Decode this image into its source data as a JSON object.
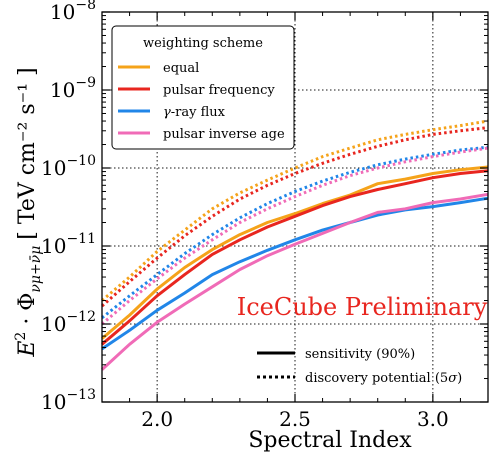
{
  "chart_data": {
    "type": "line",
    "xlabel": "Spectral Index",
    "ylabel_parts": {
      "prefix": "E",
      "sup": "2",
      "middle": " · Φ",
      "sub": "νμ+ν̄μ",
      "units": "[ TeV cm⁻² s⁻¹ ]"
    },
    "xlim": [
      1.8,
      3.2
    ],
    "ylim": [
      1e-13,
      1e-08
    ],
    "yscale": "log",
    "grid": true,
    "x_ticks": [
      2.0,
      2.5,
      3.0
    ],
    "x_tick_labels": [
      "2.0",
      "2.5",
      "3.0"
    ],
    "y_ticks": [
      1e-13,
      1e-12,
      1e-11,
      1e-10,
      1e-09,
      1e-08
    ],
    "y_tick_labels": [
      {
        "base": "10",
        "exp": "−13"
      },
      {
        "base": "10",
        "exp": "−12"
      },
      {
        "base": "10",
        "exp": "−11"
      },
      {
        "base": "10",
        "exp": "−10"
      },
      {
        "base": "10",
        "exp": "−9"
      },
      {
        "base": "10",
        "exp": "−8"
      }
    ],
    "x": [
      1.8,
      1.9,
      2.0,
      2.1,
      2.2,
      2.3,
      2.4,
      2.5,
      2.6,
      2.7,
      2.8,
      2.9,
      3.0,
      3.1,
      3.2
    ],
    "legend_title": "weighting scheme",
    "legend_placement": "top-left",
    "series": [
      {
        "name": "equal",
        "color": "#f5a31a",
        "style": "solid",
        "values": [
          6.5e-13,
          1.3e-12,
          2.8e-12,
          5.3e-12,
          9e-12,
          1.4e-11,
          2e-11,
          2.6e-11,
          3.5e-11,
          4.5e-11,
          6.3e-11,
          7.2e-11,
          8.5e-11,
          9.5e-11,
          1.03e-10
        ]
      },
      {
        "name": "pulsar frequency",
        "color": "#e8261f",
        "style": "solid",
        "values": [
          5.5e-13,
          1.1e-12,
          2.3e-12,
          4.3e-12,
          7.8e-12,
          1.2e-11,
          1.75e-11,
          2.4e-11,
          3.3e-11,
          4.3e-11,
          5.3e-11,
          6.3e-11,
          7.5e-11,
          8.5e-11,
          9.2e-11
        ]
      },
      {
        "name": "γ-ray flux",
        "color": "#2186e8",
        "style": "solid",
        "values": [
          4.8e-13,
          8.3e-13,
          1.5e-12,
          2.5e-12,
          4.3e-12,
          6.3e-12,
          8.8e-12,
          1.2e-11,
          1.6e-11,
          2e-11,
          2.5e-11,
          2.9e-11,
          3.2e-11,
          3.6e-11,
          4.1e-11
        ]
      },
      {
        "name": "pulsar inverse age",
        "color": "#f06bb7",
        "style": "solid",
        "values": [
          2.6e-13,
          5.5e-13,
          1.05e-12,
          1.8e-12,
          3e-12,
          5e-12,
          7.5e-12,
          1.05e-11,
          1.45e-11,
          2e-11,
          2.7e-11,
          3e-11,
          3.6e-11,
          4e-11,
          4.6e-11
        ]
      },
      {
        "name": "equal",
        "color": "#f5a31a",
        "style": "dotted",
        "values": [
          2e-12,
          4e-12,
          8.5e-12,
          1.6e-11,
          3e-11,
          4.8e-11,
          7e-11,
          1e-10,
          1.4e-10,
          1.8e-10,
          2.3e-10,
          2.7e-10,
          3.1e-10,
          3.5e-10,
          4e-10
        ]
      },
      {
        "name": "pulsar frequency",
        "color": "#e8261f",
        "style": "dotted",
        "values": [
          1.7e-12,
          3.5e-12,
          7e-12,
          1.35e-11,
          2.4e-11,
          4e-11,
          6e-11,
          8.5e-11,
          1.15e-10,
          1.5e-10,
          1.9e-10,
          2.3e-10,
          2.7e-10,
          3e-10,
          3.3e-10
        ]
      },
      {
        "name": "γ-ray flux",
        "color": "#2186e8",
        "style": "dotted",
        "values": [
          1.2e-12,
          2.3e-12,
          4.3e-12,
          8e-12,
          1.4e-11,
          2.3e-11,
          3.5e-11,
          5e-11,
          6.8e-11,
          8.8e-11,
          1.1e-10,
          1.3e-10,
          1.5e-10,
          1.7e-10,
          1.85e-10
        ]
      },
      {
        "name": "pulsar inverse age",
        "color": "#f06bb7",
        "style": "dotted",
        "values": [
          1e-12,
          2e-12,
          3.8e-12,
          7e-12,
          1.2e-11,
          2e-11,
          3e-11,
          4.3e-11,
          6e-11,
          8e-11,
          1e-10,
          1.2e-10,
          1.4e-10,
          1.6e-10,
          1.8e-10
        ]
      }
    ],
    "style_legend": [
      {
        "label": "sensitivity (90%)",
        "style": "solid"
      },
      {
        "label_prefix": "discovery potential (5",
        "label_sigma": "σ",
        "label_suffix": ")",
        "style": "dotted"
      }
    ],
    "annotation": "IceCube Preliminary",
    "annotation_color": "#e8261f"
  }
}
